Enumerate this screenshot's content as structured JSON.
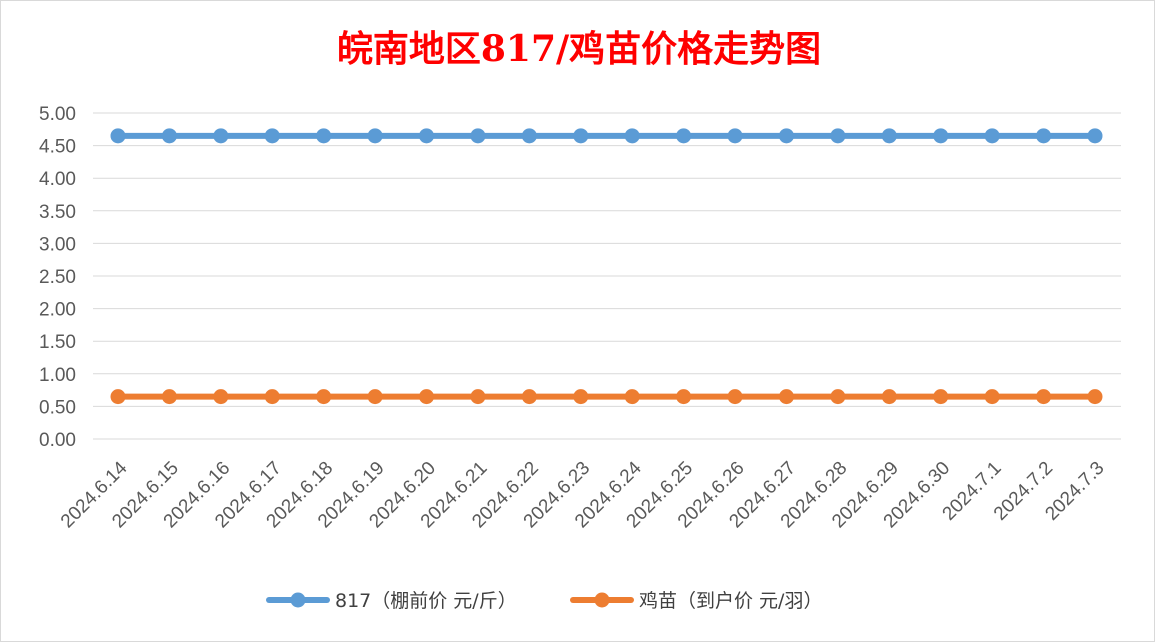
{
  "chart_data": {
    "type": "line",
    "title": "皖南地区817/鸡苗价格走势图",
    "x": [
      "2024.6.14",
      "2024.6.15",
      "2024.6.16",
      "2024.6.17",
      "2024.6.18",
      "2024.6.19",
      "2024.6.20",
      "2024.6.21",
      "2024.6.22",
      "2024.6.23",
      "2024.6.24",
      "2024.6.25",
      "2024.6.26",
      "2024.6.27",
      "2024.6.28",
      "2024.6.29",
      "2024.6.30",
      "2024.7.1",
      "2024.7.2",
      "2024.7.3"
    ],
    "yticks": [
      "0.00",
      "0.50",
      "1.00",
      "1.50",
      "2.00",
      "2.50",
      "3.00",
      "3.50",
      "4.00",
      "4.50",
      "5.00"
    ],
    "ylim": [
      0,
      5
    ],
    "grid": true,
    "legend_position": "bottom",
    "series": [
      {
        "name": "817（棚前价 元/斤）",
        "color": "#5b9bd5",
        "values": [
          4.65,
          4.65,
          4.65,
          4.65,
          4.65,
          4.65,
          4.65,
          4.65,
          4.65,
          4.65,
          4.65,
          4.65,
          4.65,
          4.65,
          4.65,
          4.65,
          4.65,
          4.65,
          4.65,
          4.65
        ]
      },
      {
        "name": "鸡苗（到户价 元/羽）",
        "color": "#ed7d31",
        "values": [
          0.65,
          0.65,
          0.65,
          0.65,
          0.65,
          0.65,
          0.65,
          0.65,
          0.65,
          0.65,
          0.65,
          0.65,
          0.65,
          0.65,
          0.65,
          0.65,
          0.65,
          0.65,
          0.65,
          0.65
        ]
      }
    ]
  }
}
